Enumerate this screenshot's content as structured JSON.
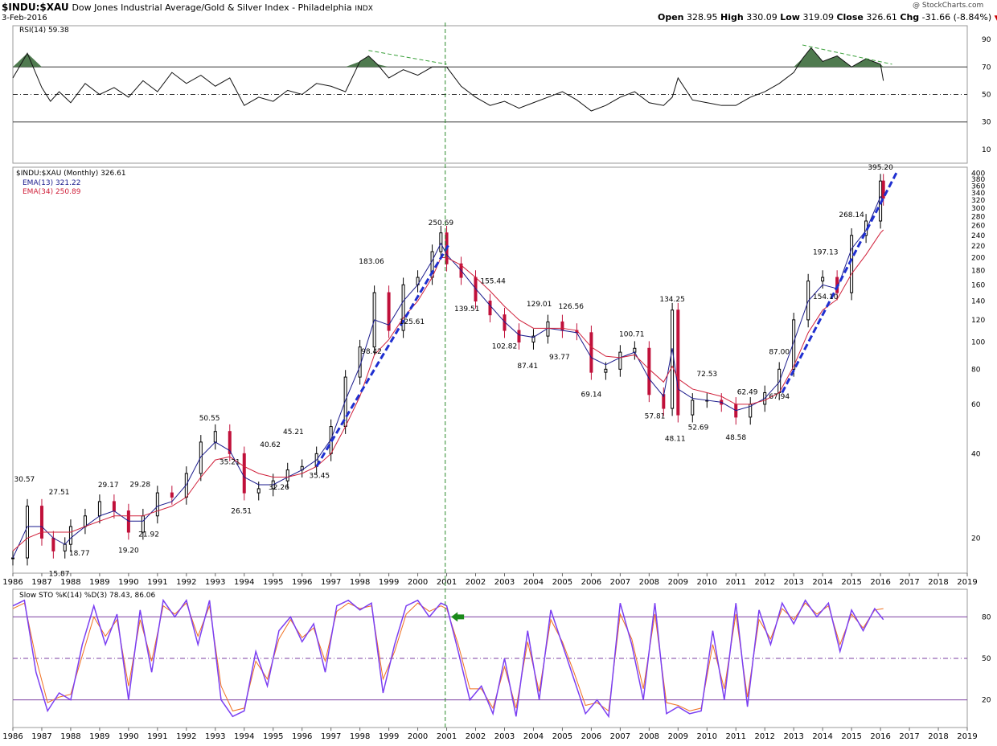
{
  "header": {
    "symbol": "$INDU:$XAU",
    "description": "Dow Jones Industrial Average/Gold & Silver Index - Philadelphia",
    "exchange": "INDX",
    "date": "3-Feb-2016",
    "watermark": "@ StockCharts.com",
    "open_label": "Open",
    "open": "328.95",
    "high_label": "High",
    "high": "330.09",
    "low_label": "Low",
    "low": "319.09",
    "close_label": "Close",
    "close": "326.61",
    "chg_label": "Chg",
    "chg": "-31.66 (-8.84%)",
    "chg_icon": "down-triangle-icon",
    "chg_color": "#cc0000"
  },
  "colors": {
    "up_candle": "#000000",
    "down_candle": "#c0103a",
    "ema13": "#1a1a8c",
    "ema34": "#d0203a",
    "trendline": "#1f2fd0",
    "rsi_fill": "#4f7a4f",
    "stoch_k": "#7b3ff2",
    "stoch_d": "#f07020",
    "divergence": "#3aa03a",
    "vertical_marker": "#2a8a2a",
    "stoch_line": "#7b3fa0",
    "arrow": "#1a8a1a"
  },
  "chart_data": [
    {
      "type": "line",
      "panel": "rsi",
      "legend": "RSI(14) 59.38",
      "yticks": [
        "90",
        "70",
        "50",
        "30",
        "10"
      ],
      "ylim": [
        0,
        100
      ],
      "levels": [
        70,
        50,
        30
      ],
      "x": [
        1986.0,
        1986.5,
        1987.0,
        1987.3,
        1987.6,
        1988.0,
        1988.5,
        1989.0,
        1989.5,
        1990.0,
        1990.5,
        1991.0,
        1991.5,
        1992.0,
        1992.5,
        1993.0,
        1993.5,
        1994.0,
        1994.5,
        1995.0,
        1995.5,
        1996.0,
        1996.5,
        1997.0,
        1997.5,
        1998.0,
        1998.3,
        1998.6,
        1999.0,
        1999.5,
        2000.0,
        2000.5,
        2001.0,
        2001.5,
        2002.0,
        2002.5,
        2003.0,
        2003.5,
        2004.0,
        2004.5,
        2005.0,
        2005.5,
        2006.0,
        2006.5,
        2007.0,
        2007.5,
        2008.0,
        2008.5,
        2008.8,
        2009.0,
        2009.5,
        2010.0,
        2010.5,
        2011.0,
        2011.5,
        2012.0,
        2012.5,
        2013.0,
        2013.3,
        2013.6,
        2014.0,
        2014.5,
        2015.0,
        2015.5,
        2016.0,
        2016.1
      ],
      "values": [
        62,
        80,
        55,
        45,
        52,
        44,
        58,
        50,
        55,
        48,
        60,
        52,
        66,
        58,
        64,
        56,
        62,
        42,
        48,
        45,
        53,
        50,
        58,
        56,
        52,
        74,
        78,
        72,
        62,
        68,
        64,
        70,
        70,
        56,
        48,
        42,
        45,
        40,
        44,
        48,
        52,
        46,
        38,
        42,
        48,
        52,
        44,
        42,
        48,
        62,
        46,
        44,
        42,
        42,
        48,
        52,
        58,
        66,
        76,
        84,
        74,
        78,
        70,
        76,
        72,
        60
      ],
      "divergence_labels": []
    },
    {
      "type": "candlestick",
      "panel": "price",
      "legend": "$INDU:$XAU (Monthly) 326.61",
      "ema13_label": "EMA(13) 321.22",
      "ema34_label": "EMA(34) 250.89",
      "yscale": "log",
      "ylim": [
        15,
        420
      ],
      "yticks": [
        "400",
        "380",
        "360",
        "340",
        "320",
        "300",
        "280",
        "260",
        "240",
        "220",
        "200",
        "180",
        "160",
        "140",
        "120",
        "100",
        "80",
        "60",
        "40",
        "20"
      ],
      "x": [
        1986.0,
        1986.5,
        1987.0,
        1987.4,
        1987.8,
        1988.0,
        1988.5,
        1989.0,
        1989.5,
        1990.0,
        1990.5,
        1991.0,
        1991.5,
        1992.0,
        1992.5,
        1993.0,
        1993.5,
        1994.0,
        1994.5,
        1995.0,
        1995.5,
        1996.0,
        1996.5,
        1997.0,
        1997.5,
        1998.0,
        1998.5,
        1999.0,
        1999.5,
        2000.0,
        2000.5,
        2000.8,
        2001.0,
        2001.5,
        2002.0,
        2002.5,
        2003.0,
        2003.5,
        2004.0,
        2004.5,
        2005.0,
        2005.5,
        2006.0,
        2006.5,
        2007.0,
        2007.5,
        2008.0,
        2008.5,
        2008.8,
        2009.0,
        2009.5,
        2010.0,
        2010.5,
        2011.0,
        2011.5,
        2012.0,
        2012.5,
        2013.0,
        2013.5,
        2014.0,
        2014.5,
        2015.0,
        2015.5,
        2016.0,
        2016.1
      ],
      "close": [
        17,
        26,
        20,
        18,
        19,
        22,
        24,
        27,
        25,
        21,
        24,
        29,
        28,
        34,
        44,
        48,
        40,
        29,
        30,
        32,
        35,
        36,
        40,
        50,
        75,
        96,
        150,
        110,
        160,
        170,
        210,
        245,
        190,
        170,
        140,
        125,
        110,
        100,
        105,
        118,
        110,
        108,
        78,
        80,
        92,
        95,
        65,
        58,
        130,
        55,
        62,
        62,
        60,
        54,
        60,
        66,
        80,
        120,
        165,
        170,
        150,
        240,
        270,
        375,
        326
      ],
      "annotations": [
        "30.57",
        "27.51",
        "15.87",
        "18.77",
        "29.17",
        "19.20",
        "29.28",
        "21.92",
        "50.55",
        "35.21",
        "26.51",
        "40.62",
        "32.26",
        "45.21",
        "35.45",
        "183.06",
        "98.42",
        "125.61",
        "250.69",
        "139.51",
        "155.44",
        "102.82",
        "87.41",
        "129.01",
        "93.77",
        "126.56",
        "69.14",
        "100.71",
        "134.25",
        "57.81",
        "48.11",
        "52.69",
        "72.53",
        "48.58",
        "62.49",
        "67.94",
        "87.00",
        "154.10",
        "197.13",
        "268.14",
        "395.20"
      ],
      "ema13": [
        17,
        22,
        22,
        20,
        19,
        20,
        22,
        24,
        25,
        23,
        23,
        26,
        27,
        31,
        39,
        44,
        41,
        33,
        31,
        31,
        33,
        35,
        38,
        45,
        62,
        82,
        120,
        115,
        140,
        160,
        195,
        225,
        205,
        180,
        155,
        135,
        118,
        106,
        104,
        112,
        110,
        108,
        88,
        83,
        88,
        92,
        74,
        64,
        95,
        68,
        63,
        62,
        61,
        57,
        59,
        63,
        72,
        100,
        140,
        160,
        155,
        215,
        250,
        330,
        321
      ],
      "ema34": [
        18,
        20,
        21,
        21,
        21,
        21,
        22,
        23,
        24,
        24,
        24,
        25,
        26,
        28,
        33,
        38,
        39,
        36,
        34,
        33,
        33,
        34,
        36,
        40,
        50,
        64,
        90,
        102,
        122,
        140,
        170,
        200,
        200,
        188,
        170,
        152,
        134,
        120,
        112,
        112,
        112,
        110,
        96,
        89,
        88,
        90,
        80,
        72,
        82,
        74,
        68,
        66,
        64,
        60,
        60,
        62,
        66,
        82,
        108,
        130,
        142,
        175,
        205,
        245,
        251
      ]
    },
    {
      "type": "line",
      "panel": "stochastic",
      "legend": "Slow STO %K(14) %D(3) 78.43, 86.06",
      "yticks": [
        "80",
        "50",
        "20"
      ],
      "ylim": [
        0,
        100
      ],
      "levels": [
        80,
        50,
        20
      ],
      "x": [
        1986.0,
        1986.4,
        1986.8,
        1987.2,
        1987.6,
        1988.0,
        1988.4,
        1988.8,
        1989.2,
        1989.6,
        1990.0,
        1990.4,
        1990.8,
        1991.2,
        1991.6,
        1992.0,
        1992.4,
        1992.8,
        1993.2,
        1993.6,
        1994.0,
        1994.4,
        1994.8,
        1995.2,
        1995.6,
        1996.0,
        1996.4,
        1996.8,
        1997.2,
        1997.6,
        1998.0,
        1998.4,
        1998.8,
        1999.2,
        1999.6,
        2000.0,
        2000.4,
        2000.8,
        2001.0,
        2001.4,
        2001.8,
        2002.2,
        2002.6,
        2003.0,
        2003.4,
        2003.8,
        2004.2,
        2004.6,
        2005.0,
        2005.4,
        2005.8,
        2006.2,
        2006.6,
        2007.0,
        2007.4,
        2007.8,
        2008.2,
        2008.6,
        2009.0,
        2009.4,
        2009.8,
        2010.2,
        2010.6,
        2011.0,
        2011.4,
        2011.8,
        2012.2,
        2012.6,
        2013.0,
        2013.4,
        2013.8,
        2014.2,
        2014.6,
        2015.0,
        2015.4,
        2015.8,
        2016.1
      ],
      "k": [
        88,
        92,
        40,
        12,
        25,
        20,
        60,
        88,
        60,
        82,
        20,
        85,
        40,
        92,
        80,
        92,
        60,
        92,
        20,
        8,
        12,
        55,
        30,
        70,
        80,
        62,
        75,
        40,
        88,
        92,
        85,
        90,
        25,
        60,
        88,
        92,
        80,
        90,
        88,
        55,
        20,
        30,
        10,
        50,
        8,
        70,
        20,
        85,
        60,
        35,
        10,
        20,
        8,
        90,
        60,
        20,
        90,
        10,
        15,
        10,
        12,
        70,
        20,
        90,
        15,
        85,
        60,
        90,
        75,
        92,
        80,
        90,
        55,
        85,
        70,
        86,
        78
      ],
      "d": [
        86,
        90,
        50,
        18,
        22,
        24,
        52,
        80,
        66,
        78,
        30,
        78,
        48,
        88,
        82,
        90,
        66,
        88,
        30,
        12,
        14,
        48,
        35,
        64,
        78,
        65,
        72,
        48,
        84,
        90,
        86,
        88,
        35,
        55,
        82,
        90,
        84,
        88,
        86,
        60,
        28,
        28,
        14,
        44,
        14,
        62,
        26,
        78,
        62,
        40,
        16,
        18,
        12,
        82,
        64,
        28,
        82,
        18,
        16,
        12,
        14,
        60,
        28,
        82,
        22,
        78,
        64,
        86,
        78,
        90,
        82,
        88,
        60,
        82,
        72,
        85,
        86
      ]
    }
  ],
  "x_axis_years": [
    "1986",
    "1987",
    "1988",
    "1989",
    "1990",
    "1991",
    "1992",
    "1993",
    "1994",
    "1995",
    "1996",
    "1997",
    "1998",
    "1999",
    "2000",
    "2001",
    "2002",
    "2003",
    "2004",
    "2005",
    "2006",
    "2007",
    "2008",
    "2009",
    "2010",
    "2011",
    "2012",
    "2013",
    "2014",
    "2015",
    "2016",
    "2017",
    "2018",
    "2019"
  ]
}
